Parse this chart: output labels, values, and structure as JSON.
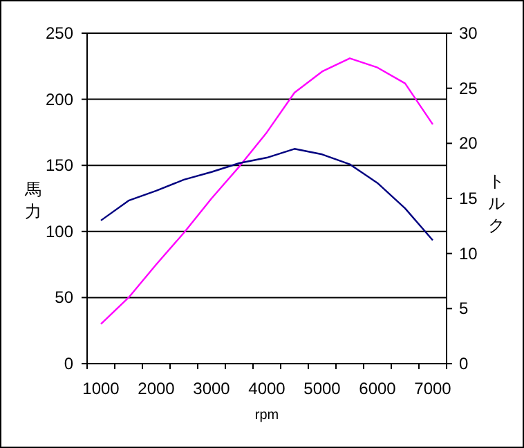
{
  "chart_data": {
    "type": "line",
    "xlabel": "rpm",
    "ylabel": "馬力",
    "y2label": "トルク",
    "categories": [
      "1000",
      null,
      "2000",
      null,
      "3000",
      null,
      "4000",
      null,
      "5000",
      null,
      "6000",
      null,
      "7000"
    ],
    "series": [
      {
        "color": "#ff00ff",
        "values": [
          30,
          50,
          75,
          99,
          125,
          149,
          175,
          205,
          221,
          231,
          224,
          212,
          181
        ]
      },
      {
        "color": "#000080",
        "axis": "y2",
        "values": [
          13.0,
          14.8,
          15.7,
          16.7,
          17.4,
          18.2,
          18.7,
          19.5,
          19.0,
          18.1,
          16.4,
          14.1,
          11.2
        ]
      }
    ],
    "ylim": [
      0,
      250
    ],
    "yticks": [
      0,
      50,
      100,
      150,
      200,
      250
    ],
    "y2lim": [
      0,
      30
    ],
    "y2ticks": [
      0,
      5,
      10,
      15,
      20,
      25,
      30
    ],
    "grid": "y"
  }
}
